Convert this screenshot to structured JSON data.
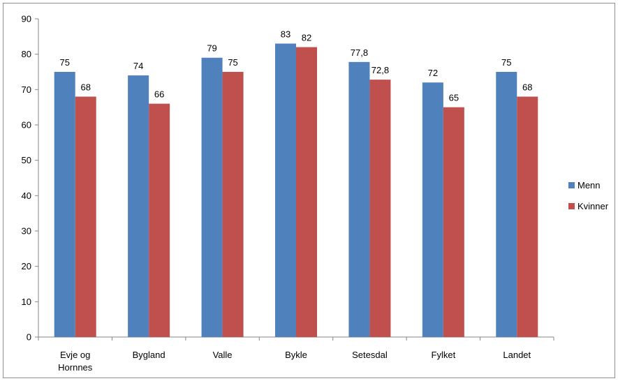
{
  "chart_data": {
    "type": "bar",
    "title": "",
    "xlabel": "",
    "ylabel": "",
    "ylim": [
      0,
      90
    ],
    "yticks": [
      "0",
      "10",
      "20",
      "30",
      "40",
      "50",
      "60",
      "70",
      "80",
      "90"
    ],
    "categories": [
      [
        "Evje og",
        "Hornnes"
      ],
      [
        "Bygland"
      ],
      [
        "Valle"
      ],
      [
        "Bykle"
      ],
      [
        "Setesdal"
      ],
      [
        "Fylket"
      ],
      [
        "Landet"
      ]
    ],
    "series": [
      {
        "name": "Menn",
        "color": "#4f81bd",
        "values": [
          75,
          74,
          79,
          83,
          77.8,
          72,
          75
        ],
        "labels": [
          "75",
          "74",
          "79",
          "83",
          "77,8",
          "72",
          "75"
        ]
      },
      {
        "name": "Kvinner",
        "color": "#c0504d",
        "values": [
          68,
          66,
          75,
          82,
          72.8,
          65,
          68
        ],
        "labels": [
          "68",
          "66",
          "75",
          "82",
          "72,8",
          "65",
          "68"
        ]
      }
    ],
    "grid": false,
    "legend_position": "right"
  }
}
